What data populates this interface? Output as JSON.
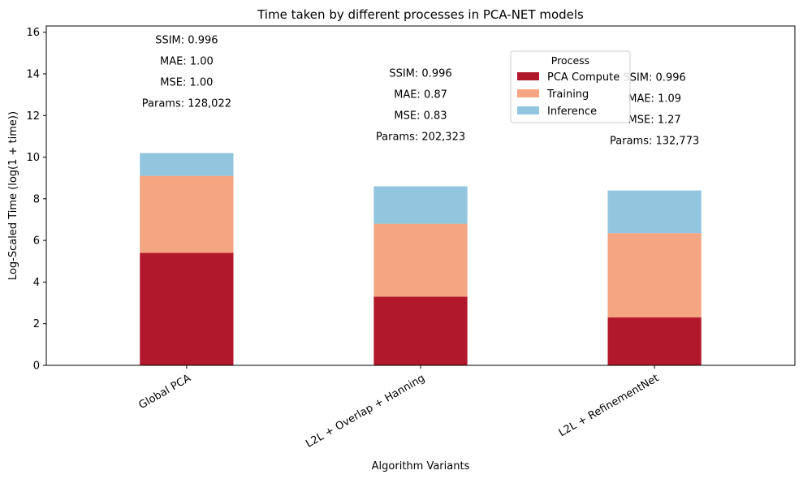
{
  "chart_data": {
    "type": "bar",
    "stacked": true,
    "title": "Time taken by different processes in PCA-NET models",
    "xlabel": "Algorithm Variants",
    "ylabel": "Log-Scaled Time (log(1 + time))",
    "ylim": [
      0,
      16.3
    ],
    "yticks": [
      0,
      2,
      4,
      6,
      8,
      10,
      12,
      14,
      16
    ],
    "grid": false,
    "legend_position": "upper-right-center",
    "legend_title": "Process",
    "categories": [
      "Global PCA",
      "L2L + Overlap + Hanning",
      "L2L + RefinementNet"
    ],
    "series": [
      {
        "name": "PCA Compute",
        "color": "#b2182b",
        "values": [
          5.4,
          3.3,
          2.3
        ]
      },
      {
        "name": "Training",
        "color": "#f4a582",
        "values": [
          3.7,
          3.5,
          4.05
        ]
      },
      {
        "name": "Inference",
        "color": "#92c5de",
        "values": [
          1.1,
          1.8,
          2.05
        ]
      }
    ],
    "annotations": [
      [
        "SSIM: 0.996",
        "MAE: 1.00",
        "MSE: 1.00",
        "Params: 128,022"
      ],
      [
        "SSIM: 0.996",
        "MAE: 0.87",
        "MSE: 0.83",
        "Params: 202,323"
      ],
      [
        "SSIM: 0.996",
        "MAE: 1.09",
        "MSE: 1.27",
        "Params: 132,773"
      ]
    ]
  }
}
